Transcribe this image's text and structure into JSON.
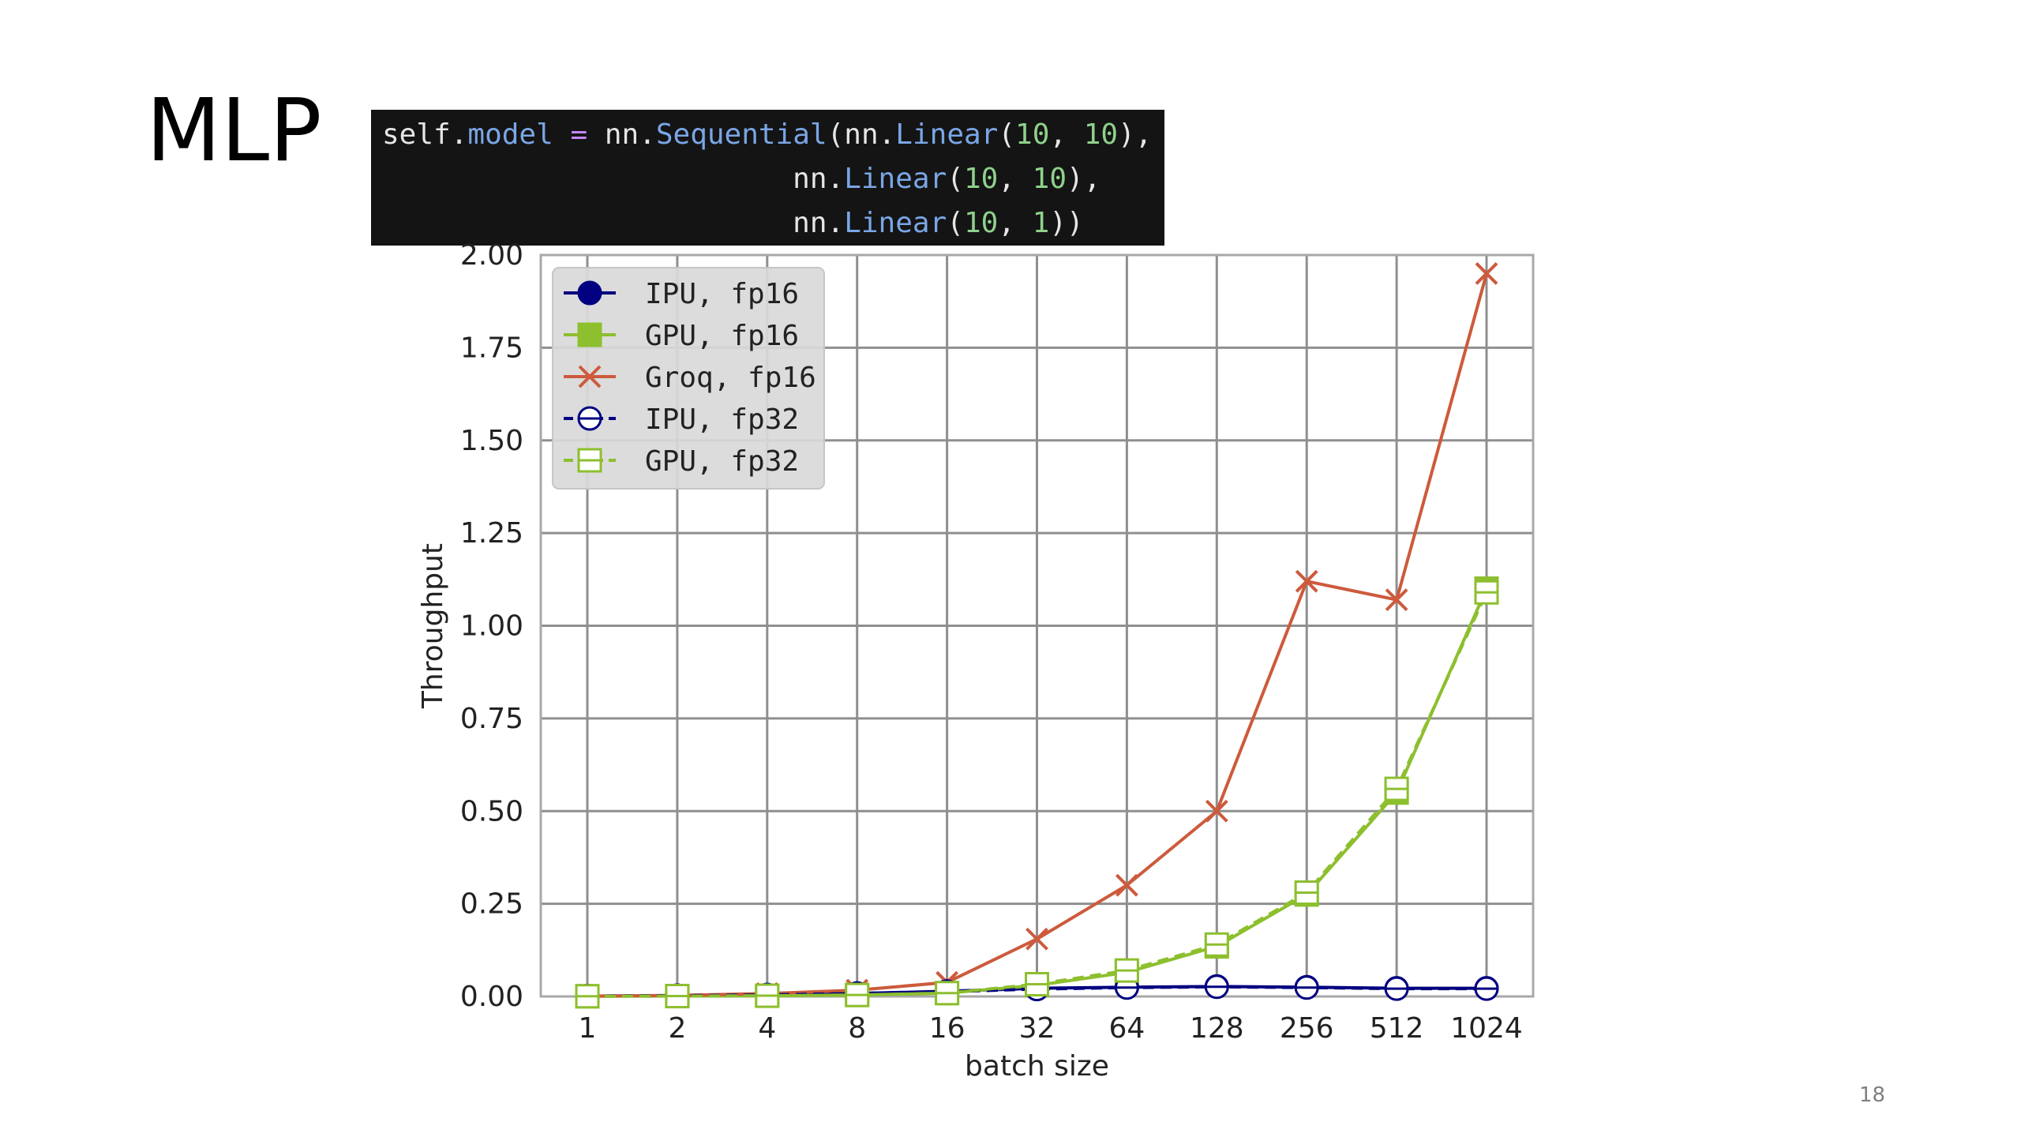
{
  "slide": {
    "title": "MLP",
    "page_number": "18"
  },
  "code": {
    "lines": [
      [
        {
          "t": "self",
          "c": "plain"
        },
        {
          "t": ".",
          "c": "plain"
        },
        {
          "t": "model",
          "c": "kw"
        },
        {
          "t": " ",
          "c": "plain"
        },
        {
          "t": "=",
          "c": "op"
        },
        {
          "t": " nn.",
          "c": "plain"
        },
        {
          "t": "Sequential",
          "c": "kw"
        },
        {
          "t": "(nn.",
          "c": "plain"
        },
        {
          "t": "Linear",
          "c": "kw"
        },
        {
          "t": "(",
          "c": "plain"
        },
        {
          "t": "10",
          "c": "num"
        },
        {
          "t": ", ",
          "c": "plain"
        },
        {
          "t": "10",
          "c": "num"
        },
        {
          "t": "),",
          "c": "plain"
        }
      ],
      [
        {
          "t": "                        nn.",
          "c": "plain"
        },
        {
          "t": "Linear",
          "c": "kw"
        },
        {
          "t": "(",
          "c": "plain"
        },
        {
          "t": "10",
          "c": "num"
        },
        {
          "t": ", ",
          "c": "plain"
        },
        {
          "t": "10",
          "c": "num"
        },
        {
          "t": "),",
          "c": "plain"
        }
      ],
      [
        {
          "t": "                        nn.",
          "c": "plain"
        },
        {
          "t": "Linear",
          "c": "kw"
        },
        {
          "t": "(",
          "c": "plain"
        },
        {
          "t": "10",
          "c": "num"
        },
        {
          "t": ", ",
          "c": "plain"
        },
        {
          "t": "1",
          "c": "num"
        },
        {
          "t": "))",
          "c": "plain"
        }
      ]
    ]
  },
  "chart_data": {
    "type": "line",
    "title": "",
    "xlabel": "batch size",
    "ylabel": "Throughput",
    "x_scale": "log2 (categorical ticks)",
    "categories": [
      "1",
      "2",
      "4",
      "8",
      "16",
      "32",
      "64",
      "128",
      "256",
      "512",
      "1024"
    ],
    "ylim": [
      0.0,
      2.0
    ],
    "yticks": [
      "0.00",
      "0.25",
      "0.50",
      "0.75",
      "1.00",
      "1.25",
      "1.50",
      "1.75",
      "2.00"
    ],
    "grid": true,
    "legend_position": "top-left",
    "series": [
      {
        "name": "IPU, fp16",
        "color": "#000080",
        "marker": "circle",
        "filled": true,
        "dash": "solid",
        "values": [
          0.001,
          0.002,
          0.004,
          0.008,
          0.014,
          0.022,
          0.025,
          0.027,
          0.025,
          0.022,
          0.022
        ]
      },
      {
        "name": "GPU, fp16",
        "color": "#8dbf2e",
        "marker": "square",
        "filled": true,
        "dash": "solid",
        "values": [
          0.0005,
          0.001,
          0.002,
          0.004,
          0.009,
          0.03,
          0.065,
          0.135,
          0.275,
          0.55,
          1.1
        ]
      },
      {
        "name": "Groq, fp16",
        "color": "#cd5a3c",
        "marker": "x",
        "filled": false,
        "dash": "solid",
        "values": [
          0.001,
          0.003,
          0.008,
          0.017,
          0.038,
          0.155,
          0.3,
          0.5,
          1.12,
          1.07,
          1.95
        ]
      },
      {
        "name": "IPU, fp32",
        "color": "#000080",
        "marker": "circle",
        "filled": false,
        "dash": "dashed",
        "values": [
          0.001,
          0.002,
          0.004,
          0.008,
          0.013,
          0.02,
          0.024,
          0.026,
          0.024,
          0.021,
          0.021
        ]
      },
      {
        "name": "GPU, fp32",
        "color": "#8dbf2e",
        "marker": "square",
        "filled": false,
        "dash": "dashed",
        "values": [
          0.0005,
          0.001,
          0.002,
          0.004,
          0.009,
          0.033,
          0.07,
          0.14,
          0.28,
          0.56,
          1.09
        ]
      }
    ]
  }
}
